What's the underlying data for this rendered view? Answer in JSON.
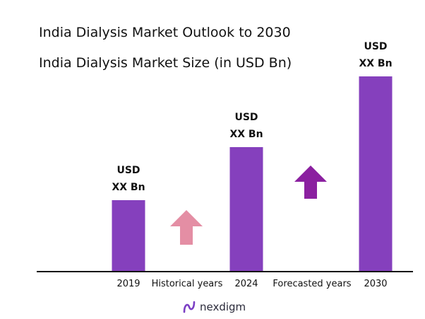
{
  "header": {
    "title": "India Dialysis Market Outlook to 2030",
    "subtitle": "India Dialysis Market Size (in USD Bn)"
  },
  "chart_data": {
    "type": "bar",
    "title": "India Dialysis Market Size (in USD Bn)",
    "categories": [
      "2019",
      "2024",
      "2030"
    ],
    "values": [
      1.0,
      1.75,
      2.75
    ],
    "data_labels": [
      {
        "line1": "USD",
        "line2": "XX Bn"
      },
      {
        "line1": "USD",
        "line2": "XX Bn"
      },
      {
        "line1": "USD",
        "line2": "XX Bn"
      }
    ],
    "period_labels": [
      "Historical years",
      "Forecasted years"
    ],
    "bar_color": "#8540bd",
    "grid": false,
    "legend": "none"
  },
  "arrows": {
    "historical_color": "#e48ea4",
    "forecast_color": "#8b20a0",
    "icon": "up-arrow-icon"
  },
  "footer": {
    "brand": "nexdigm",
    "logo_icon": "nexdigm-logo-icon"
  }
}
